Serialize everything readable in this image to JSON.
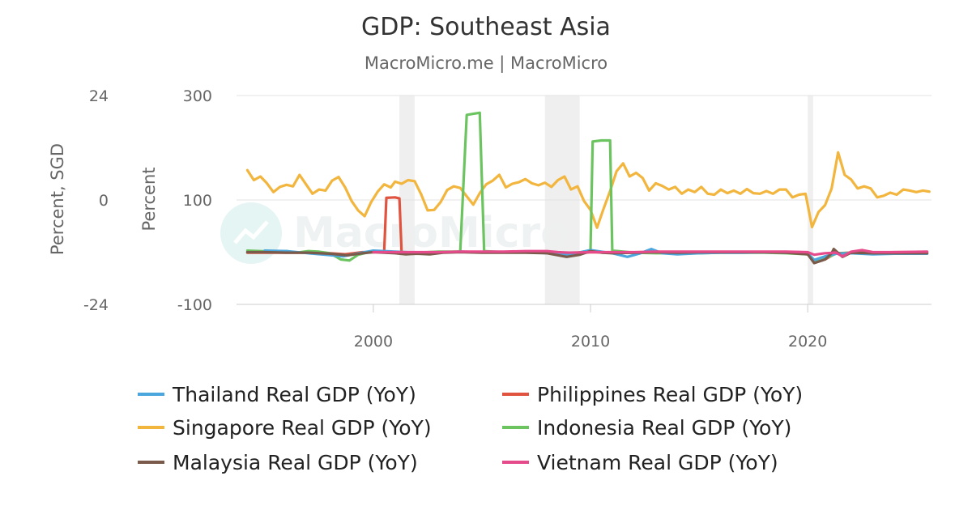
{
  "chart_data": {
    "type": "line",
    "title": "GDP: Southeast Asia",
    "subtitle": "MacroMicro.me | MacroMicro",
    "watermark": "MacroMicro",
    "left_axis": {
      "title": "Percent, SGD",
      "range": [
        -24,
        24
      ],
      "ticks": [
        "24",
        "0",
        "-24"
      ]
    },
    "right_axis": {
      "title": "Percent",
      "range": [
        -100,
        300
      ],
      "ticks": [
        "300",
        "100",
        "-100"
      ]
    },
    "x_axis": {
      "range": [
        1993.7,
        2025.7
      ],
      "ticks": [
        2000,
        2010,
        2020
      ],
      "tick_labels": [
        "2000",
        "2010",
        "2020"
      ]
    },
    "grid": true,
    "legend_position": "bottom",
    "recession_bands": [
      [
        2001.2,
        2001.9
      ],
      [
        2007.9,
        2009.5
      ],
      [
        2020.0,
        2020.25
      ]
    ],
    "series": [
      {
        "name": "Thailand Real GDP (YoY)",
        "color": "#4aa6dc",
        "axis": "right",
        "points": [
          [
            1995.0,
            3
          ],
          [
            1996.0,
            2
          ],
          [
            1997.0,
            -2
          ],
          [
            1997.8,
            -5
          ],
          [
            1998.6,
            -8
          ],
          [
            1999.2,
            -3
          ],
          [
            2000.0,
            3
          ],
          [
            2001.0,
            1
          ],
          [
            2002.0,
            -1
          ],
          [
            2003.0,
            -1
          ],
          [
            2004.0,
            1
          ],
          [
            2005.0,
            0
          ],
          [
            2006.0,
            0
          ],
          [
            2007.0,
            1
          ],
          [
            2008.0,
            -2
          ],
          [
            2009.0,
            -5
          ],
          [
            2010.0,
            4
          ],
          [
            2011.0,
            -2
          ],
          [
            2011.7,
            -9
          ],
          [
            2012.3,
            -2
          ],
          [
            2012.8,
            6
          ],
          [
            2013.3,
            -2
          ],
          [
            2014.0,
            -4
          ],
          [
            2015.0,
            -2
          ],
          [
            2016.0,
            -1
          ],
          [
            2017.0,
            -1
          ],
          [
            2018.0,
            0
          ],
          [
            2019.0,
            -1
          ],
          [
            2020.0,
            -2
          ],
          [
            2020.3,
            -15
          ],
          [
            2020.8,
            -8
          ],
          [
            2021.3,
            -3
          ],
          [
            2022.0,
            -2
          ],
          [
            2023.0,
            -4
          ],
          [
            2024.0,
            -3
          ],
          [
            2025.5,
            -3
          ]
        ]
      },
      {
        "name": "Philippines Real GDP (YoY)",
        "color": "#e0533f",
        "axis": "right",
        "points": [
          [
            1994.2,
            -1
          ],
          [
            1995.0,
            -1
          ],
          [
            1996.0,
            -1
          ],
          [
            1997.0,
            -1
          ],
          [
            1998.0,
            -2
          ],
          [
            1998.7,
            -4
          ],
          [
            1999.5,
            0
          ],
          [
            2000.0,
            0
          ],
          [
            2000.5,
            1
          ],
          [
            2000.6,
            104
          ],
          [
            2001.0,
            105
          ],
          [
            2001.2,
            103
          ],
          [
            2001.3,
            0
          ],
          [
            2002.0,
            -1
          ],
          [
            2003.0,
            0
          ],
          [
            2004.0,
            1
          ],
          [
            2005.0,
            0
          ],
          [
            2006.0,
            0
          ],
          [
            2007.0,
            1
          ],
          [
            2008.0,
            -1
          ],
          [
            2009.0,
            -4
          ],
          [
            2010.0,
            0
          ],
          [
            2011.0,
            -1
          ],
          [
            2012.0,
            -1
          ],
          [
            2013.0,
            0
          ],
          [
            2014.0,
            -1
          ],
          [
            2015.0,
            0
          ],
          [
            2016.0,
            0
          ],
          [
            2017.0,
            0
          ],
          [
            2018.0,
            0
          ],
          [
            2019.0,
            0
          ],
          [
            2020.0,
            -2
          ],
          [
            2020.3,
            -20
          ],
          [
            2020.8,
            -14
          ],
          [
            2021.3,
            -2
          ],
          [
            2022.0,
            -1
          ],
          [
            2023.0,
            -1
          ],
          [
            2024.0,
            0
          ],
          [
            2025.5,
            0
          ]
        ]
      },
      {
        "name": "Singapore Real GDP (YoY)",
        "color": "#f2b53e",
        "axis": "right",
        "points": [
          [
            1994.2,
            157
          ],
          [
            1994.5,
            138
          ],
          [
            1994.8,
            145
          ],
          [
            1995.1,
            132
          ],
          [
            1995.4,
            115
          ],
          [
            1995.7,
            125
          ],
          [
            1996.0,
            129
          ],
          [
            1996.3,
            126
          ],
          [
            1996.6,
            148
          ],
          [
            1996.9,
            130
          ],
          [
            1997.2,
            112
          ],
          [
            1997.5,
            120
          ],
          [
            1997.8,
            118
          ],
          [
            1998.1,
            137
          ],
          [
            1998.4,
            144
          ],
          [
            1998.7,
            124
          ],
          [
            1999.0,
            98
          ],
          [
            1999.3,
            80
          ],
          [
            1999.6,
            69
          ],
          [
            1999.9,
            96
          ],
          [
            2000.2,
            116
          ],
          [
            2000.5,
            130
          ],
          [
            2000.8,
            124
          ],
          [
            2001.0,
            135
          ],
          [
            2001.3,
            131
          ],
          [
            2001.6,
            138
          ],
          [
            2001.9,
            136
          ],
          [
            2002.2,
            111
          ],
          [
            2002.5,
            80
          ],
          [
            2002.8,
            81
          ],
          [
            2003.1,
            96
          ],
          [
            2003.4,
            119
          ],
          [
            2003.7,
            126
          ],
          [
            2004.0,
            123
          ],
          [
            2004.3,
            107
          ],
          [
            2004.6,
            91
          ],
          [
            2004.9,
            113
          ],
          [
            2005.2,
            130
          ],
          [
            2005.5,
            137
          ],
          [
            2005.8,
            148
          ],
          [
            2006.1,
            124
          ],
          [
            2006.4,
            131
          ],
          [
            2006.7,
            134
          ],
          [
            2007.0,
            140
          ],
          [
            2007.3,
            132
          ],
          [
            2007.6,
            128
          ],
          [
            2007.9,
            133
          ],
          [
            2008.2,
            125
          ],
          [
            2008.5,
            138
          ],
          [
            2008.8,
            145
          ],
          [
            2009.1,
            120
          ],
          [
            2009.4,
            126
          ],
          [
            2009.7,
            98
          ],
          [
            2010.0,
            81
          ],
          [
            2010.3,
            47
          ],
          [
            2010.6,
            83
          ],
          [
            2010.9,
            117
          ],
          [
            2011.2,
            155
          ],
          [
            2011.5,
            170
          ],
          [
            2011.8,
            145
          ],
          [
            2012.1,
            152
          ],
          [
            2012.4,
            142
          ],
          [
            2012.7,
            118
          ],
          [
            2013.0,
            132
          ],
          [
            2013.3,
            127
          ],
          [
            2013.6,
            120
          ],
          [
            2013.9,
            125
          ],
          [
            2014.2,
            112
          ],
          [
            2014.5,
            120
          ],
          [
            2014.8,
            115
          ],
          [
            2015.1,
            125
          ],
          [
            2015.4,
            112
          ],
          [
            2015.7,
            110
          ],
          [
            2016.0,
            120
          ],
          [
            2016.3,
            113
          ],
          [
            2016.6,
            118
          ],
          [
            2016.9,
            112
          ],
          [
            2017.2,
            121
          ],
          [
            2017.5,
            113
          ],
          [
            2017.8,
            112
          ],
          [
            2018.1,
            117
          ],
          [
            2018.4,
            112
          ],
          [
            2018.7,
            120
          ],
          [
            2019.0,
            120
          ],
          [
            2019.3,
            105
          ],
          [
            2019.6,
            110
          ],
          [
            2019.9,
            112
          ],
          [
            2020.2,
            48
          ],
          [
            2020.5,
            77
          ],
          [
            2020.8,
            90
          ],
          [
            2021.1,
            122
          ],
          [
            2021.4,
            191
          ],
          [
            2021.7,
            148
          ],
          [
            2022.0,
            139
          ],
          [
            2022.3,
            122
          ],
          [
            2022.6,
            126
          ],
          [
            2022.9,
            122
          ],
          [
            2023.2,
            105
          ],
          [
            2023.5,
            108
          ],
          [
            2023.8,
            114
          ],
          [
            2024.1,
            110
          ],
          [
            2024.4,
            120
          ],
          [
            2024.7,
            118
          ],
          [
            2025.0,
            115
          ],
          [
            2025.3,
            118
          ],
          [
            2025.6,
            116
          ]
        ]
      },
      {
        "name": "Indonesia Real GDP (YoY)",
        "color": "#6cc461",
        "axis": "right",
        "points": [
          [
            1994.2,
            3
          ],
          [
            1994.8,
            2
          ],
          [
            1995.5,
            1
          ],
          [
            1996.0,
            2
          ],
          [
            1996.5,
            -1
          ],
          [
            1997.0,
            2
          ],
          [
            1997.5,
            1
          ],
          [
            1998.0,
            -2
          ],
          [
            1998.5,
            -14
          ],
          [
            1998.9,
            -16
          ],
          [
            1999.3,
            -5
          ],
          [
            1999.8,
            0
          ],
          [
            2000.3,
            1
          ],
          [
            2001.0,
            0
          ],
          [
            2002.0,
            -1
          ],
          [
            2003.0,
            1
          ],
          [
            2004.0,
            1
          ],
          [
            2004.3,
            263
          ],
          [
            2004.6,
            265
          ],
          [
            2004.9,
            267
          ],
          [
            2005.1,
            2
          ],
          [
            2006.0,
            0
          ],
          [
            2007.0,
            1
          ],
          [
            2008.0,
            0
          ],
          [
            2009.0,
            -3
          ],
          [
            2009.8,
            1
          ],
          [
            2010.0,
            2
          ],
          [
            2010.1,
            212
          ],
          [
            2010.5,
            214
          ],
          [
            2010.9,
            214
          ],
          [
            2011.0,
            3
          ],
          [
            2012.0,
            -1
          ],
          [
            2013.0,
            -2
          ],
          [
            2014.0,
            -2
          ],
          [
            2015.0,
            -2
          ],
          [
            2016.0,
            -1
          ],
          [
            2017.0,
            -1
          ],
          [
            2018.0,
            -1
          ],
          [
            2019.0,
            -2
          ],
          [
            2020.0,
            -4
          ],
          [
            2020.3,
            -19
          ],
          [
            2020.8,
            -12
          ],
          [
            2021.3,
            -3
          ],
          [
            2022.0,
            -1
          ],
          [
            2023.0,
            -2
          ],
          [
            2024.0,
            -2
          ],
          [
            2025.5,
            -2
          ]
        ]
      },
      {
        "name": "Malaysia Real GDP (YoY)",
        "color": "#7a5a4a",
        "axis": "right",
        "points": [
          [
            1994.2,
            0
          ],
          [
            1995.0,
            0
          ],
          [
            1996.0,
            -1
          ],
          [
            1997.0,
            -1
          ],
          [
            1998.0,
            -3
          ],
          [
            1998.8,
            -6
          ],
          [
            1999.5,
            -2
          ],
          [
            2000.0,
            0
          ],
          [
            2001.0,
            -2
          ],
          [
            2001.5,
            -4
          ],
          [
            2002.0,
            -3
          ],
          [
            2002.6,
            -4
          ],
          [
            2003.2,
            -1
          ],
          [
            2004.0,
            0
          ],
          [
            2005.0,
            -1
          ],
          [
            2006.0,
            -1
          ],
          [
            2007.0,
            -1
          ],
          [
            2008.0,
            -2
          ],
          [
            2008.9,
            -9
          ],
          [
            2009.5,
            -5
          ],
          [
            2010.0,
            2
          ],
          [
            2010.5,
            -1
          ],
          [
            2011.0,
            -2
          ],
          [
            2012.0,
            -1
          ],
          [
            2013.0,
            0
          ],
          [
            2014.0,
            -1
          ],
          [
            2015.0,
            0
          ],
          [
            2016.0,
            0
          ],
          [
            2017.0,
            0
          ],
          [
            2018.0,
            0
          ],
          [
            2019.0,
            -1
          ],
          [
            2020.0,
            -4
          ],
          [
            2020.3,
            -21
          ],
          [
            2020.8,
            -14
          ],
          [
            2021.1,
            -2
          ],
          [
            2021.2,
            6
          ],
          [
            2021.6,
            -9
          ],
          [
            2022.0,
            -1
          ],
          [
            2023.0,
            -2
          ],
          [
            2024.0,
            -2
          ],
          [
            2025.5,
            -2
          ]
        ]
      },
      {
        "name": "Vietnam Real GDP (YoY)",
        "color": "#e54b8a",
        "axis": "right",
        "points": [
          [
            2000.0,
            0
          ],
          [
            2001.0,
            0
          ],
          [
            2002.0,
            0
          ],
          [
            2003.0,
            0
          ],
          [
            2004.0,
            1
          ],
          [
            2005.0,
            1
          ],
          [
            2006.0,
            1
          ],
          [
            2007.0,
            2
          ],
          [
            2008.0,
            2
          ],
          [
            2008.5,
            0
          ],
          [
            2009.0,
            -1
          ],
          [
            2010.0,
            0
          ],
          [
            2011.0,
            0
          ],
          [
            2012.0,
            0
          ],
          [
            2013.0,
            1
          ],
          [
            2014.0,
            1
          ],
          [
            2015.0,
            1
          ],
          [
            2016.0,
            1
          ],
          [
            2017.0,
            1
          ],
          [
            2018.0,
            1
          ],
          [
            2019.0,
            1
          ],
          [
            2020.0,
            0
          ],
          [
            2020.3,
            -5
          ],
          [
            2020.8,
            -2
          ],
          [
            2021.3,
            -1
          ],
          [
            2021.6,
            -8
          ],
          [
            2022.0,
            1
          ],
          [
            2022.5,
            4
          ],
          [
            2023.0,
            0
          ],
          [
            2024.0,
            0
          ],
          [
            2025.5,
            1
          ]
        ]
      }
    ]
  }
}
